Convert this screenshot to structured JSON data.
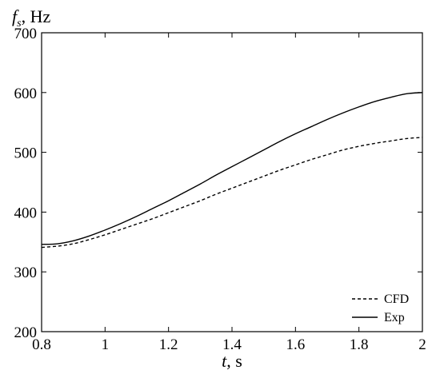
{
  "chart_data": {
    "type": "line",
    "ylabel": {
      "symbol": "f",
      "subscript": "s",
      "unit": ", Hz"
    },
    "xlabel": {
      "symbol": "t",
      "unit": ", s"
    },
    "xlim": [
      0.8,
      2.0
    ],
    "ylim": [
      200,
      700
    ],
    "xticks": [
      0.8,
      1.0,
      1.2,
      1.4,
      1.6,
      1.8,
      2.0
    ],
    "xtick_labels": [
      "0.8",
      "1",
      "1.2",
      "1.4",
      "1.6",
      "1.8",
      "2"
    ],
    "yticks": [
      200,
      300,
      400,
      500,
      600,
      700
    ],
    "ytick_labels": [
      "200",
      "300",
      "400",
      "500",
      "600",
      "700"
    ],
    "grid": false,
    "legend_position": "bottom-right",
    "series": [
      {
        "name": "CFD",
        "style": "dashed",
        "x": [
          0.8,
          0.85,
          0.9,
          0.95,
          1.0,
          1.05,
          1.1,
          1.15,
          1.2,
          1.25,
          1.3,
          1.35,
          1.4,
          1.45,
          1.5,
          1.55,
          1.6,
          1.65,
          1.7,
          1.75,
          1.8,
          1.85,
          1.9,
          1.95,
          2.0
        ],
        "y": [
          341,
          343,
          347,
          354,
          362,
          371,
          380,
          389,
          399,
          409,
          419,
          430,
          440,
          450,
          460,
          470,
          479,
          488,
          496,
          504,
          510,
          515,
          519,
          523,
          525
        ]
      },
      {
        "name": "Exp",
        "style": "solid",
        "x": [
          0.8,
          0.85,
          0.9,
          0.95,
          1.0,
          1.05,
          1.1,
          1.15,
          1.2,
          1.25,
          1.3,
          1.35,
          1.4,
          1.45,
          1.5,
          1.55,
          1.6,
          1.65,
          1.7,
          1.75,
          1.8,
          1.85,
          1.9,
          1.95,
          2.0
        ],
        "y": [
          346,
          347,
          352,
          360,
          370,
          381,
          393,
          406,
          419,
          433,
          447,
          462,
          476,
          490,
          504,
          518,
          531,
          543,
          555,
          566,
          576,
          585,
          592,
          598,
          600
        ]
      }
    ]
  }
}
